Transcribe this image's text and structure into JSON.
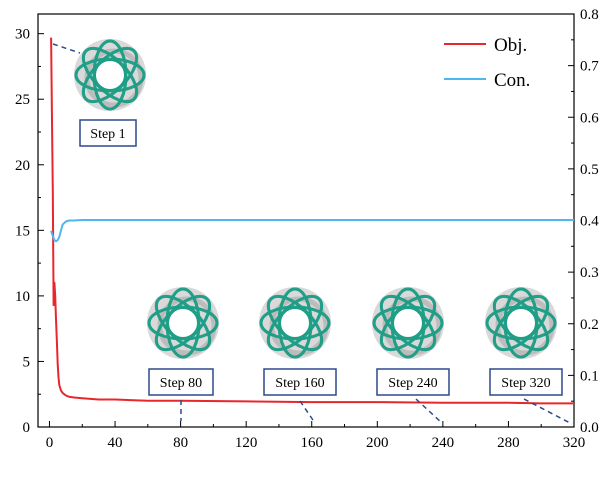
{
  "chart_data": {
    "type": "line",
    "x_ticks": [
      0,
      40,
      80,
      120,
      160,
      200,
      240,
      280,
      320
    ],
    "y_left_ticks": [
      0,
      5,
      10,
      15,
      20,
      25,
      30
    ],
    "y_right_ticks": [
      "0.0",
      "0.1",
      "0.2",
      "0.3",
      "0.4",
      "0.5",
      "0.6",
      "0.7",
      "0.8"
    ],
    "xlim": [
      -7,
      320
    ],
    "ylim_left": [
      0,
      31.5
    ],
    "ylim_right": [
      0,
      0.8
    ],
    "grid": false,
    "legend_position": "top-right",
    "series": [
      {
        "name": "Obj.",
        "axis": "left",
        "color": "#e8262b",
        "x": [
          1,
          1.5,
          2,
          2.5,
          3,
          3.5,
          4,
          4.5,
          5,
          5.5,
          6,
          7,
          8,
          9,
          10,
          12,
          15,
          20,
          30,
          40,
          60,
          80,
          120,
          160,
          200,
          240,
          280,
          300,
          320
        ],
        "y": [
          29.7,
          24,
          18,
          9.3,
          11,
          10,
          8.2,
          6.5,
          4.8,
          3.8,
          3.2,
          2.8,
          2.6,
          2.5,
          2.4,
          2.3,
          2.25,
          2.2,
          2.1,
          2.1,
          2.0,
          2.0,
          1.95,
          1.9,
          1.9,
          1.85,
          1.85,
          1.8,
          1.8
        ]
      },
      {
        "name": "Con.",
        "axis": "right",
        "color": "#4db8f0",
        "x": [
          1,
          2,
          3,
          4,
          5,
          6,
          7,
          8,
          10,
          12,
          15,
          20,
          40,
          80,
          120,
          160,
          200,
          240,
          280,
          320
        ],
        "y": [
          0.38,
          0.37,
          0.362,
          0.36,
          0.362,
          0.368,
          0.38,
          0.392,
          0.398,
          0.4,
          0.4,
          0.401,
          0.401,
          0.401,
          0.401,
          0.401,
          0.401,
          0.401,
          0.401,
          0.401
        ]
      }
    ],
    "annotations": [
      {
        "label": "Step 1",
        "step": 1
      },
      {
        "label": "Step 80",
        "step": 80
      },
      {
        "label": "Step 160",
        "step": 160
      },
      {
        "label": "Step 240",
        "step": 240
      },
      {
        "label": "Step 320",
        "step": 320
      }
    ],
    "colors": {
      "box_border": "#2b4a8b",
      "torus_pattern": "#1f9e86",
      "torus_body": "#d9d9d9"
    }
  }
}
